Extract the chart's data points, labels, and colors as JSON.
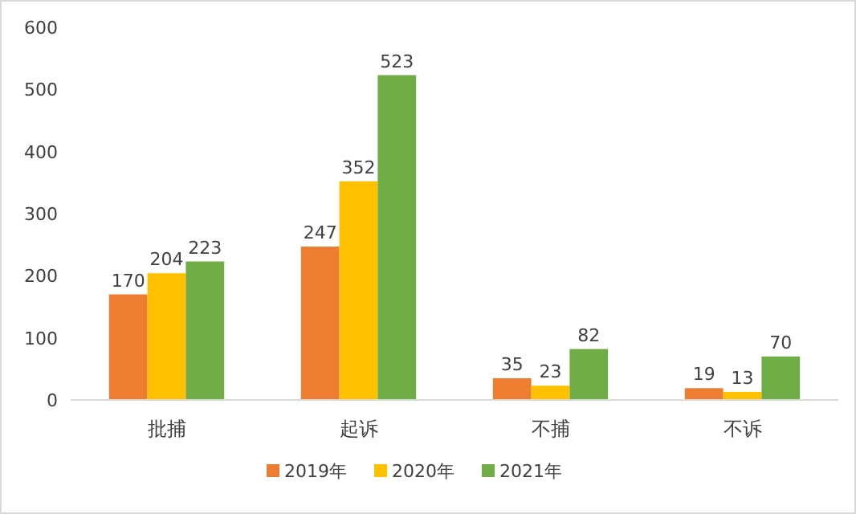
{
  "chart_data": {
    "type": "bar",
    "categories": [
      "批捕",
      "起诉",
      "不捕",
      "不诉"
    ],
    "series": [
      {
        "name": "2019年",
        "color": "#ed7d31",
        "values": [
          170,
          247,
          35,
          19
        ]
      },
      {
        "name": "2020年",
        "color": "#ffc000",
        "values": [
          204,
          352,
          23,
          13
        ]
      },
      {
        "name": "2021年",
        "color": "#70ad47",
        "values": [
          223,
          523,
          82,
          70
        ]
      }
    ],
    "ylim": [
      0,
      600
    ],
    "yticks": [
      0,
      100,
      200,
      300,
      400,
      500,
      600
    ],
    "data_labels": true,
    "legend": "bottom",
    "grid": false
  }
}
